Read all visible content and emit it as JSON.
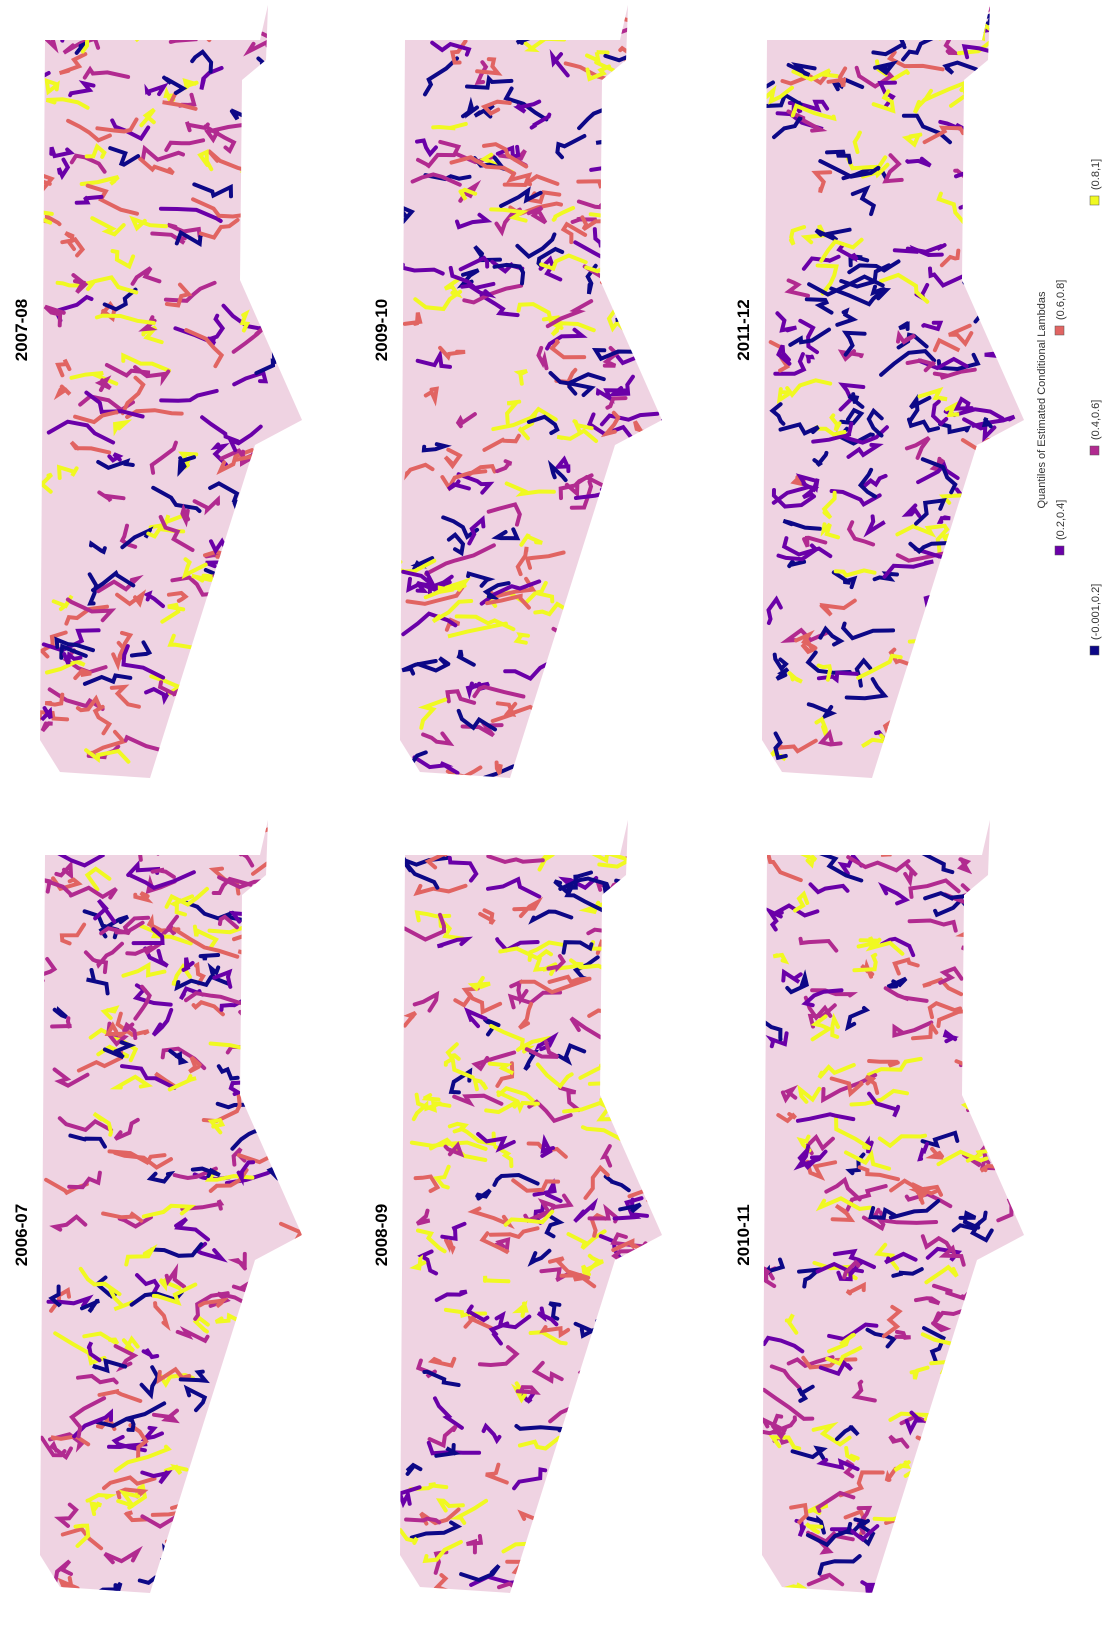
{
  "panels": [
    {
      "title": "2007-08"
    },
    {
      "title": "2009-10"
    },
    {
      "title": "2011-12"
    },
    {
      "title": "2006-07"
    },
    {
      "title": "2008-09"
    },
    {
      "title": "2010-11"
    }
  ],
  "legend": {
    "title": "Quantiles of Estimated Conditional Lambdas",
    "items": [
      {
        "label": "(-0.001,0.2]",
        "color": "#0d0887"
      },
      {
        "label": "(0.2,0.4]",
        "color": "#6a00a8"
      },
      {
        "label": "(0.4,0.6]",
        "color": "#b12a90"
      },
      {
        "label": "(0.6,0.8]",
        "color": "#e16462"
      },
      {
        "label": "(0.8,1]",
        "color": "#f0f921"
      }
    ]
  }
}
